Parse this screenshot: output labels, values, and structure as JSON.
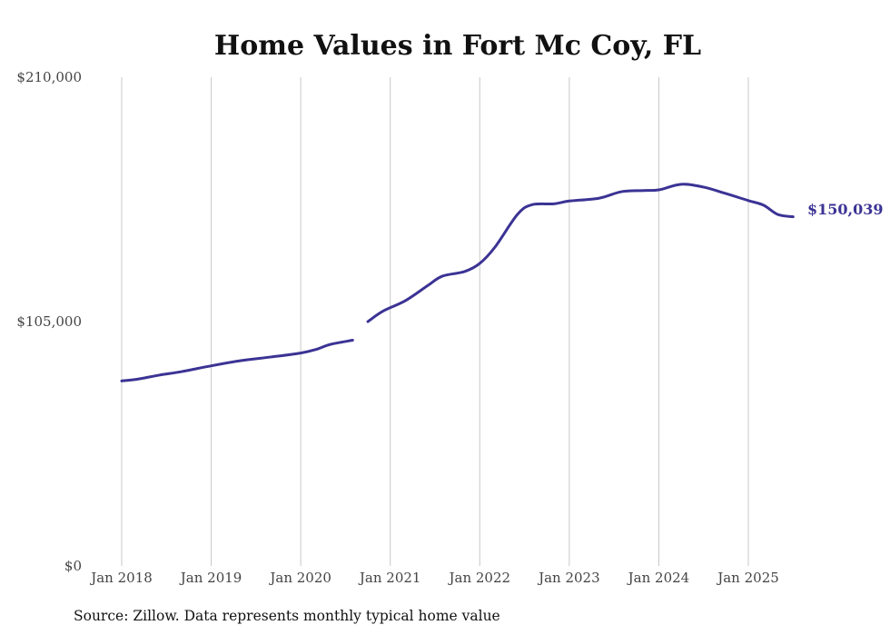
{
  "chart_data": {
    "type": "line",
    "title": "Home Values in Fort Mc Coy, FL",
    "xlabel": "",
    "ylabel": "",
    "ylim": [
      0,
      210000
    ],
    "y_ticks": [
      0,
      105000,
      210000
    ],
    "y_tick_labels": [
      "$0",
      "$105,000",
      "$210,000"
    ],
    "x_ticks": [
      2018,
      2019,
      2020,
      2021,
      2022,
      2023,
      2024,
      2025
    ],
    "x_tick_labels": [
      "Jan 2018",
      "Jan 2019",
      "Jan 2020",
      "Jan 2021",
      "Jan 2022",
      "Jan 2023",
      "Jan 2024",
      "Jan 2025"
    ],
    "grid": "vertical",
    "series": [
      {
        "name": "Typical home value",
        "color": "#3b3394",
        "segments": [
          [
            [
              2018.0,
              79500
            ],
            [
              2018.17,
              80200
            ],
            [
              2018.42,
              82000
            ],
            [
              2018.67,
              83500
            ],
            [
              2019.0,
              86000
            ],
            [
              2019.33,
              88200
            ],
            [
              2019.67,
              89800
            ],
            [
              2020.0,
              91500
            ],
            [
              2020.17,
              93000
            ],
            [
              2020.33,
              95200
            ],
            [
              2020.58,
              97000
            ]
          ],
          [
            [
              2020.75,
              105000
            ],
            [
              2020.92,
              109500
            ],
            [
              2021.17,
              114000
            ],
            [
              2021.42,
              120500
            ],
            [
              2021.58,
              124500
            ],
            [
              2021.83,
              126500
            ],
            [
              2022.0,
              130000
            ],
            [
              2022.17,
              137000
            ],
            [
              2022.42,
              151000
            ],
            [
              2022.58,
              155200
            ],
            [
              2022.83,
              155600
            ],
            [
              2023.0,
              156800
            ],
            [
              2023.33,
              158000
            ],
            [
              2023.58,
              160800
            ],
            [
              2023.83,
              161300
            ],
            [
              2024.0,
              161600
            ],
            [
              2024.25,
              164000
            ],
            [
              2024.5,
              162800
            ],
            [
              2024.75,
              160000
            ],
            [
              2025.0,
              157000
            ],
            [
              2025.17,
              155000
            ],
            [
              2025.33,
              151000
            ],
            [
              2025.5,
              150039
            ]
          ]
        ],
        "end_label": "$150,039"
      }
    ],
    "source": "Source: Zillow. Data represents monthly typical home value"
  }
}
